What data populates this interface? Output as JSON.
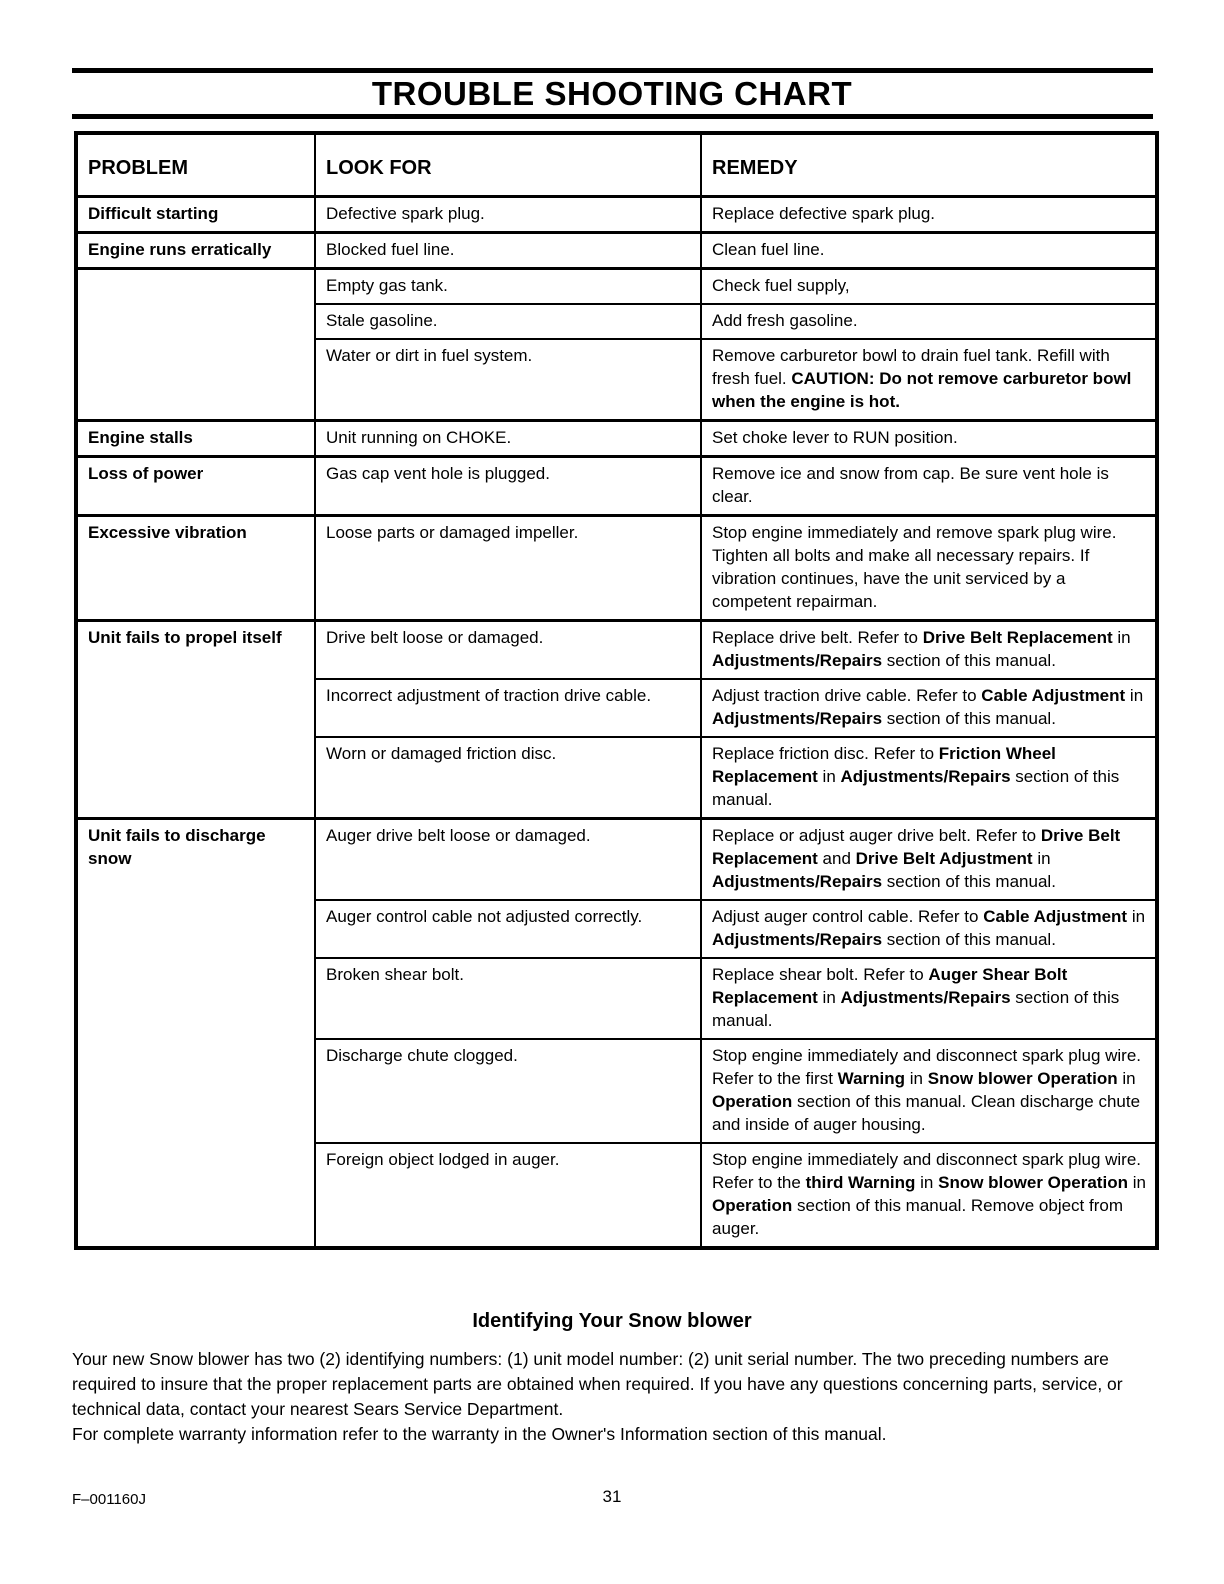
{
  "page": {
    "title": "TROUBLE SHOOTING CHART",
    "footer": {
      "doc_code": "F–001160J",
      "page_number": "31"
    }
  },
  "table": {
    "headers": [
      "PROBLEM",
      "LOOK FOR",
      "REMEDY"
    ],
    "rows": [
      {
        "problem": "Difficult starting",
        "look_for": "Defective spark plug.",
        "remedy": "Replace defective spark plug."
      },
      {
        "problem": "Engine runs erratically",
        "look_for": "Blocked fuel line.",
        "remedy": "Clean fuel line."
      },
      {
        "problem": "",
        "problem_rowspan": 3,
        "look_for": "Empty gas tank.",
        "remedy": "Check fuel supply,"
      },
      {
        "look_for": "Stale gasoline.",
        "remedy": "Add fresh gasoline."
      },
      {
        "look_for": "Water or dirt in fuel system.",
        "remedy": "Remove carburetor bowl to drain fuel tank.  Refill with fresh fuel. **CAUTION: Do not remove carburetor bowl when the engine is hot.**"
      },
      {
        "problem": "Engine stalls",
        "look_for": "Unit running on CHOKE.",
        "remedy": "Set choke lever to RUN position."
      },
      {
        "problem": "Loss of power",
        "look_for": "Gas cap vent hole is plugged.",
        "remedy": "Remove ice and snow from cap.  Be sure vent hole is clear."
      },
      {
        "problem": "Excessive vibration",
        "look_for": "Loose parts or damaged impeller.",
        "remedy": "Stop engine immediately and remove spark plug wire. Tighten all bolts and make all necessary repairs.  If vibration continues, have the unit serviced by a competent repairman."
      },
      {
        "problem": "Unit fails to propel itself",
        "problem_rowspan": 3,
        "look_for": "Drive belt loose or damaged.",
        "remedy": "Replace drive belt.  Refer to **Drive Belt Replacement** in **Adjustments/Repairs** section of this manual."
      },
      {
        "look_for": "Incorrect adjustment of traction drive cable.",
        "remedy": "Adjust traction drive cable.  Refer to **Cable Adjustment** in **Adjustments/Repairs** section of this manual."
      },
      {
        "look_for": "Worn or damaged friction disc.",
        "remedy": "Replace friction disc. Refer to **Friction Wheel Replacement** in **Adjustments/Repairs** section of this manual."
      },
      {
        "problem": "Unit fails to discharge snow",
        "problem_rowspan": 5,
        "look_for": "Auger drive belt loose or damaged.",
        "remedy": "Replace or adjust auger drive belt.  Refer to **Drive Belt Replacement** and **Drive Belt Adjustment** in **Adjustments/Repairs** section of this manual."
      },
      {
        "look_for": "Auger control cable not adjusted correctly.",
        "remedy": "Adjust auger control cable.  Refer to **Cable Adjustment** in **Adjustments/Repairs** section of this manual."
      },
      {
        "look_for": "Broken shear bolt.",
        "remedy": "Replace shear bolt.  Refer to **Auger Shear Bolt Replacement** in **Adjustments/Repairs** section of this manual."
      },
      {
        "look_for": "Discharge chute clogged.",
        "remedy": "Stop engine immediately and disconnect spark plug wire. Refer to the first **Warning** in **Snow blower Operation** in **Operation** section of this manual.  Clean discharge chute and inside of auger housing."
      },
      {
        "look_for": "Foreign object lodged in auger.",
        "remedy": "Stop engine immediately and disconnect spark plug wire. Refer to the **third Warning** in **Snow blower Operation** in **Operation** section of this manual.  Remove object from auger."
      }
    ]
  },
  "identify_section": {
    "heading": "Identifying Your Snow blower",
    "paragraph": "Your new Snow blower has two (2) identifying numbers: (1) unit model number: (2) unit serial number. The two preceding numbers are required to insure that the proper replacement parts are obtained when required. If you have any questions concerning parts, service, or technical data, contact your nearest Sears Service Department.",
    "warranty_line": "For complete warranty information refer to the warranty in the Owner's Information section of this manual."
  }
}
